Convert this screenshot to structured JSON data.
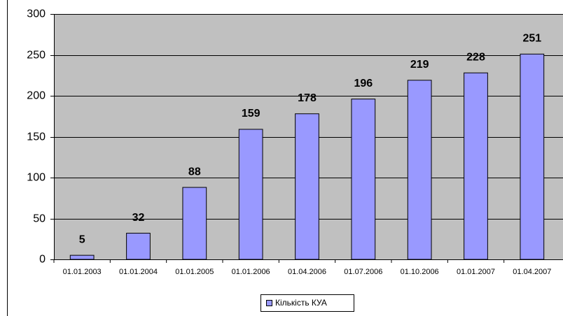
{
  "chart_data": {
    "type": "bar",
    "categories": [
      "01.01.2003",
      "01.01.2004",
      "01.01.2005",
      "01.01.2006",
      "01.04.2006",
      "01.07.2006",
      "01.10.2006",
      "01.01.2007",
      "01.04.2007"
    ],
    "series": [
      {
        "name": "Кількість КУА",
        "color": "#9999ff",
        "values": [
          5,
          32,
          88,
          159,
          178,
          196,
          219,
          228,
          251
        ]
      }
    ],
    "ylim": [
      0,
      300
    ],
    "yticks": [
      0,
      50,
      100,
      150,
      200,
      250,
      300
    ],
    "grid": true,
    "legend": "bottom"
  }
}
